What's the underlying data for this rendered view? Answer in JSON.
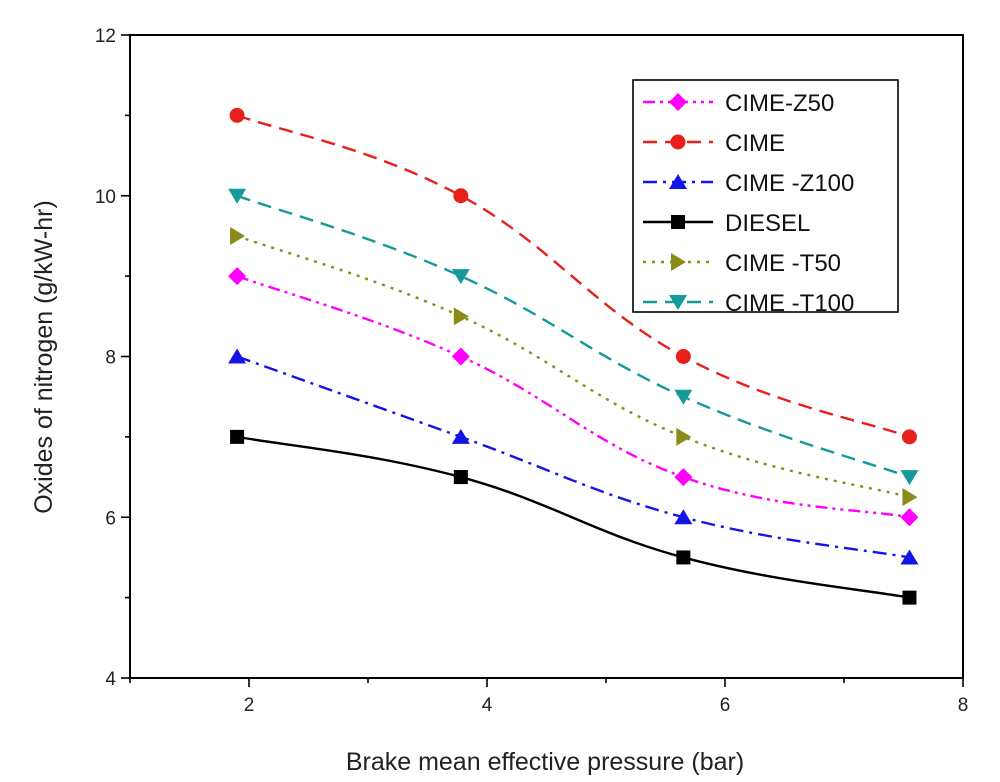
{
  "chart_data": {
    "type": "line",
    "title": "",
    "xlabel": "Brake mean effective pressure (bar)",
    "ylabel": "Oxides of nitrogen (g/kW-hr)",
    "xlim": [
      1,
      8
    ],
    "ylim": [
      4,
      12
    ],
    "xticks": [
      2,
      4,
      6,
      8
    ],
    "yticks": [
      4,
      6,
      8,
      10,
      12
    ],
    "xtick_labels": [
      "2",
      "4",
      "6",
      "8"
    ],
    "ytick_labels": [
      "4",
      "6",
      "8",
      "10",
      "12"
    ],
    "grid": false,
    "legend_position": "top-right",
    "x": [
      1.9,
      3.78,
      5.65,
      7.55
    ],
    "series": [
      {
        "name": "CIME-Z50",
        "values": [
          9,
          8,
          6.5,
          6
        ],
        "color": "#ff00ff",
        "marker": "diamond",
        "dash": "dash-dot-dot"
      },
      {
        "name": "CIME",
        "values": [
          11,
          10,
          8,
          7
        ],
        "color": "#e8201c",
        "marker": "circle",
        "dash": "dash"
      },
      {
        "name": "CIME -Z100",
        "values": [
          8,
          7,
          6,
          5.5
        ],
        "color": "#1414e6",
        "marker": "triangle-up",
        "dash": "dash-dot"
      },
      {
        "name": "DIESEL",
        "values": [
          7,
          6.5,
          5.5,
          5
        ],
        "color": "#000000",
        "marker": "square",
        "dash": "solid"
      },
      {
        "name": "CIME -T50",
        "values": [
          9.5,
          8.5,
          7,
          6.25
        ],
        "color": "#8b8b1a",
        "marker": "triangle-right",
        "dash": "dot"
      },
      {
        "name": "CIME -T100",
        "values": [
          10,
          9,
          7.5,
          6.5
        ],
        "color": "#159a9a",
        "marker": "triangle-down",
        "dash": "dash"
      }
    ]
  }
}
